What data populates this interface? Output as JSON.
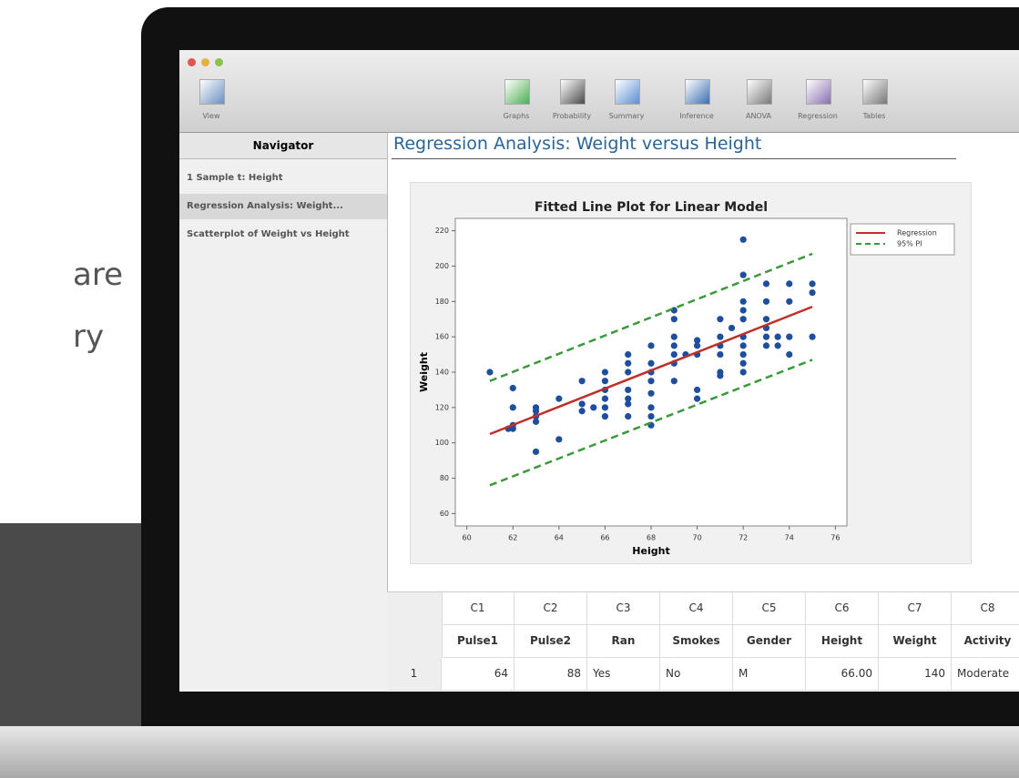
{
  "sidebar_text": [
    "are",
    "ry"
  ],
  "toolbar": [
    "View",
    "Graphs",
    "Probability",
    "Summary",
    "Inference",
    "ANOVA",
    "Regression",
    "Tables"
  ],
  "navigator": {
    "title": "Navigator",
    "items": [
      "1 Sample t: Height",
      "Regression Analysis: Weight...",
      "Scatterplot of Weight vs Height"
    ],
    "selected": 1
  },
  "output_title": "Regression Analysis: Weight versus Height",
  "chart_data": {
    "type": "scatter",
    "title": "Fitted Line Plot for Linear Model",
    "xlabel": "Height",
    "ylabel": "Weight",
    "xlim": [
      59.5,
      76.5
    ],
    "ylim": [
      53,
      227
    ],
    "xticks": [
      60,
      62,
      64,
      66,
      68,
      70,
      72,
      74,
      76
    ],
    "yticks": [
      60,
      80,
      100,
      120,
      140,
      160,
      180,
      200,
      220
    ],
    "legend": "outside right",
    "series": [
      {
        "type": "scatter",
        "color": "#1f4e9c",
        "x": [
          61,
          62,
          62,
          62,
          62,
          61.8,
          63,
          63,
          63,
          63,
          63,
          64,
          64,
          65,
          65,
          65,
          65.5,
          66,
          66,
          66,
          66,
          66,
          66,
          67,
          67,
          67,
          67,
          67,
          67,
          67,
          68,
          68,
          68,
          68,
          68,
          68,
          68,
          68,
          69,
          69,
          69,
          69,
          69,
          69,
          69,
          69.5,
          70,
          70,
          70,
          70,
          70,
          71,
          71,
          71,
          71,
          71,
          71,
          71.5,
          72,
          72,
          72,
          72,
          72,
          72,
          72,
          72,
          72,
          72,
          73,
          73,
          73,
          73,
          73,
          73,
          73.5,
          73.5,
          74,
          74,
          74,
          74,
          75,
          75,
          75
        ],
        "values": [
          140,
          108,
          110,
          120,
          131,
          108,
          95,
          112,
          118,
          120,
          115,
          102,
          125,
          118,
          122,
          135,
          120,
          115,
          120,
          125,
          130,
          135,
          140,
          115,
          122,
          125,
          130,
          140,
          145,
          150,
          110,
          115,
          120,
          128,
          135,
          140,
          145,
          155,
          135,
          145,
          150,
          155,
          160,
          170,
          175,
          150,
          125,
          130,
          150,
          155,
          158,
          138,
          140,
          150,
          155,
          160,
          170,
          165,
          140,
          145,
          150,
          155,
          160,
          170,
          175,
          180,
          195,
          215,
          155,
          160,
          165,
          170,
          180,
          190,
          155,
          160,
          150,
          160,
          180,
          190,
          160,
          185,
          190
        ]
      },
      {
        "type": "line",
        "name": "Regression",
        "color": "#c0302a",
        "x": [
          61,
          75
        ],
        "values": [
          105,
          177
        ]
      },
      {
        "type": "band",
        "name": "95% PI",
        "color": "#3a9a3a",
        "dashed": true,
        "x": [
          61,
          75
        ],
        "upper": [
          135,
          207
        ],
        "lower": [
          76,
          147
        ]
      }
    ]
  },
  "table": {
    "columns": [
      "C1",
      "C2",
      "C3",
      "C4",
      "C5",
      "C6",
      "C7",
      "C8"
    ],
    "names": [
      "Pulse1",
      "Pulse2",
      "Ran",
      "Smokes",
      "Gender",
      "Height",
      "Weight",
      "Activity"
    ],
    "rows": [
      [
        "1",
        "64",
        "88",
        "Yes",
        "No",
        "M",
        "66.00",
        "140",
        "Moderate"
      ]
    ]
  }
}
